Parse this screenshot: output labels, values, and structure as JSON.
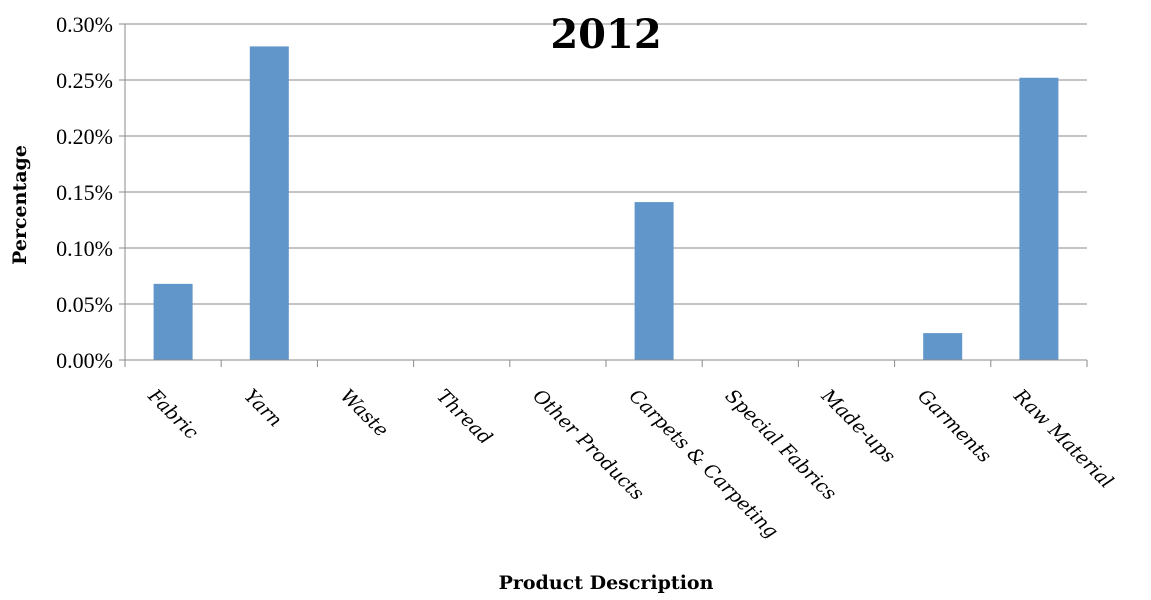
{
  "chart_data": {
    "type": "bar",
    "title": "2012",
    "xlabel": "Product Description",
    "ylabel": "Percentage",
    "categories": [
      "Fabric",
      "Yarn",
      "Waste",
      "Thread",
      "Other Products",
      "Carpets & Carpeting",
      "Special Fabrics",
      "Made-ups",
      "Garments",
      "Raw Material"
    ],
    "series": [
      {
        "values": [
          0.068,
          0.28,
          0,
          0,
          0,
          0.141,
          0,
          0,
          0.024,
          0.252
        ]
      }
    ],
    "ylim": [
      0,
      0.3
    ],
    "yticks": [
      "0.00%",
      "0.05%",
      "0.10%",
      "0.15%",
      "0.20%",
      "0.25%",
      "0.30%"
    ],
    "grid": true,
    "bar_color": "#6096c9",
    "legend": "none"
  }
}
